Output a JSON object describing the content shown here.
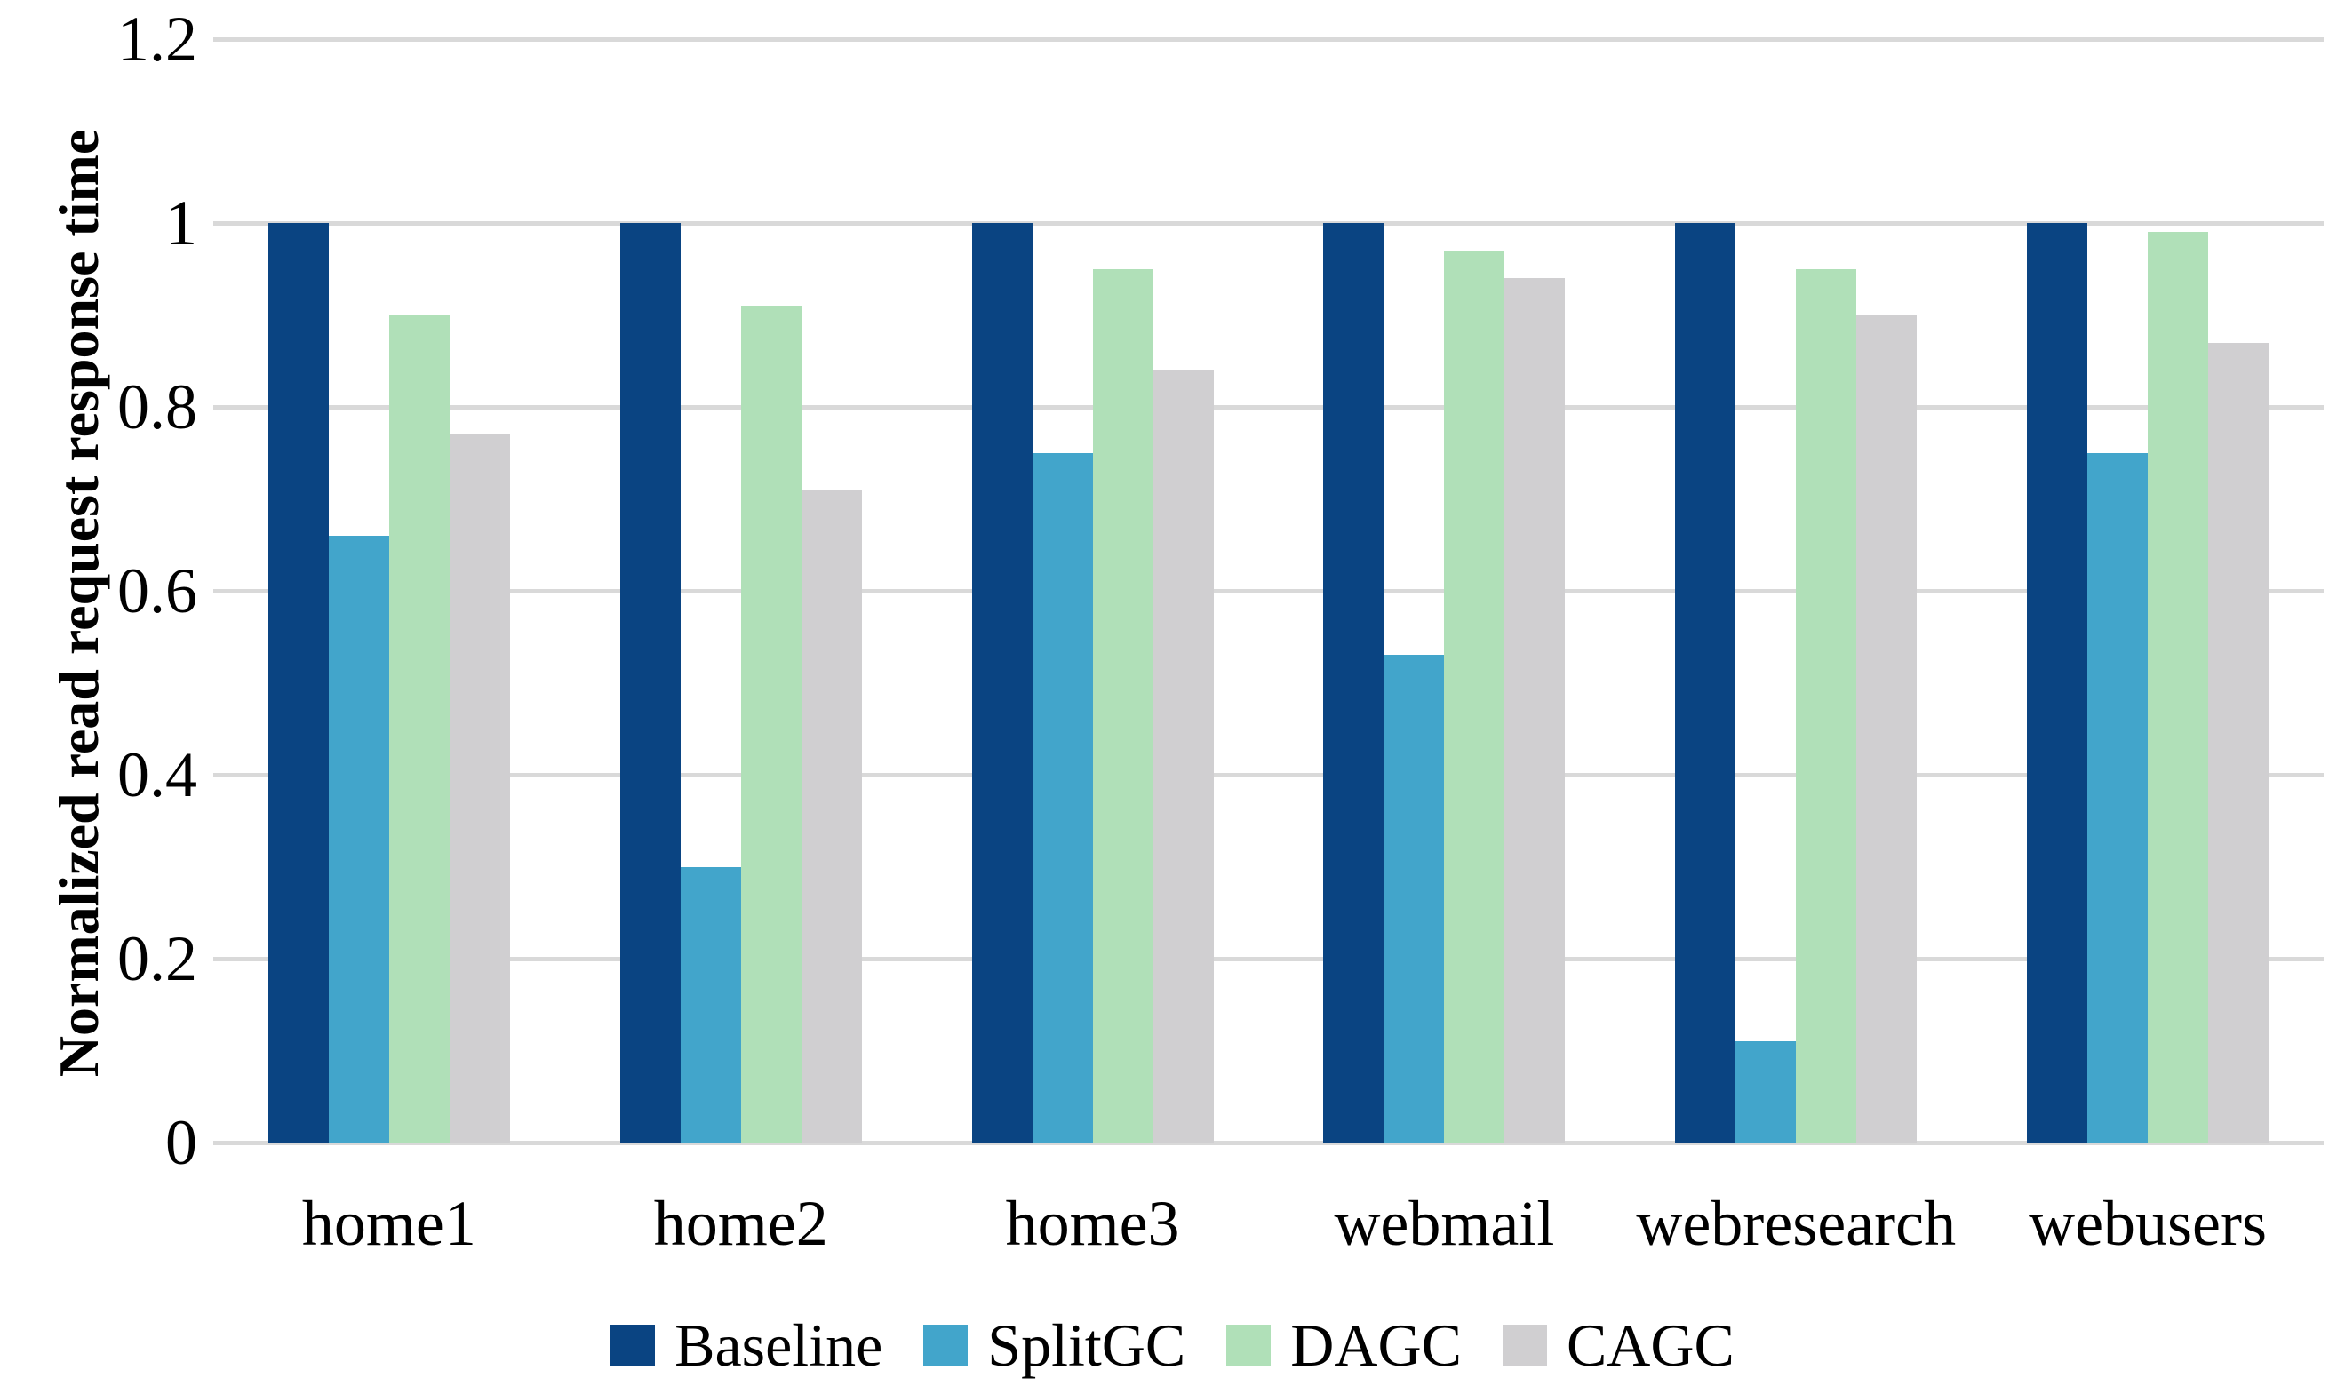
{
  "figure": {
    "background": "#FFFFFF"
  },
  "chart_data": {
    "type": "bar",
    "title": "",
    "xlabel": "",
    "ylabel": "Normalized read request response time",
    "categories": [
      "home1",
      "home2",
      "home3",
      "webmail",
      "webresearch",
      "webusers"
    ],
    "series": [
      {
        "name": "Baseline",
        "color": "#0A4482",
        "values": [
          1.0,
          1.0,
          1.0,
          1.0,
          1.0,
          1.0
        ]
      },
      {
        "name": "SplitGC",
        "color": "#42A5CB",
        "values": [
          0.66,
          0.3,
          0.75,
          0.53,
          0.11,
          0.75
        ]
      },
      {
        "name": "DAGC",
        "color": "#B0E0B8",
        "values": [
          0.9,
          0.91,
          0.95,
          0.97,
          0.95,
          0.99
        ]
      },
      {
        "name": "CAGC",
        "color": "#D0CFD1",
        "values": [
          0.77,
          0.71,
          0.84,
          0.94,
          0.9,
          0.87
        ]
      }
    ],
    "ylim": [
      0,
      1.2
    ],
    "y_ticks": [
      "0",
      "0.2",
      "0.4",
      "0.6",
      "0.8",
      "1",
      "1.2"
    ],
    "grid": true,
    "gridline_color": "#D9D9D9",
    "legend_position": "bottom",
    "legend_labels": [
      "Baseline",
      "SplitGC",
      "DAGC",
      "CAGC"
    ]
  }
}
